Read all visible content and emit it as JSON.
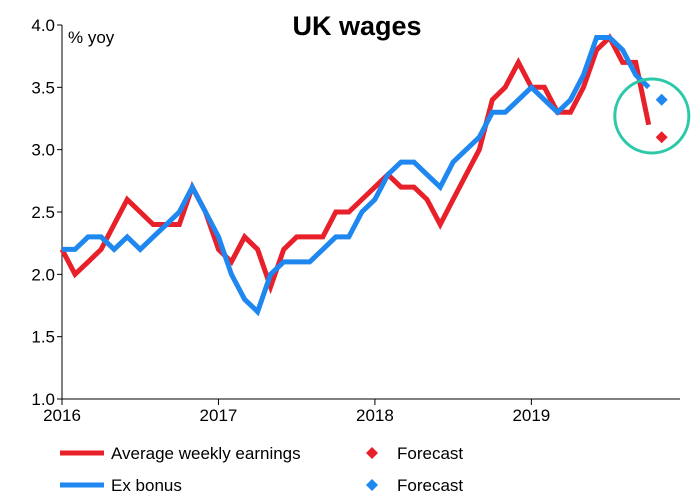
{
  "chart_data": {
    "type": "line",
    "title": "UK wages",
    "ylabel": "% yoy",
    "xlabel": "",
    "xlim": [
      2016.0,
      2019.95
    ],
    "ylim": [
      1.0,
      4.0
    ],
    "yticks": [
      "1.0",
      "1.5",
      "2.0",
      "2.5",
      "3.0",
      "3.5",
      "4.0"
    ],
    "xticks": [
      {
        "label": "2016",
        "x": 2016.0
      },
      {
        "label": "2017",
        "x": 2017.0
      },
      {
        "label": "2018",
        "x": 2018.0
      },
      {
        "label": "2019",
        "x": 2019.0
      }
    ],
    "grid": false,
    "legend_position": "bottom",
    "series": [
      {
        "name": "Average weekly earnings",
        "color": "#e8202a",
        "x": [
          2016.0,
          2016.083,
          2016.167,
          2016.25,
          2016.333,
          2016.417,
          2016.5,
          2016.583,
          2016.667,
          2016.75,
          2016.833,
          2016.917,
          2017.0,
          2017.083,
          2017.167,
          2017.25,
          2017.333,
          2017.417,
          2017.5,
          2017.583,
          2017.667,
          2017.75,
          2017.833,
          2017.917,
          2018.0,
          2018.083,
          2018.167,
          2018.25,
          2018.333,
          2018.417,
          2018.5,
          2018.583,
          2018.667,
          2018.75,
          2018.833,
          2018.917,
          2019.0,
          2019.083,
          2019.167,
          2019.25,
          2019.333,
          2019.417,
          2019.5,
          2019.583,
          2019.667,
          2019.75
        ],
        "values": [
          2.2,
          2.0,
          2.1,
          2.2,
          2.4,
          2.6,
          2.5,
          2.4,
          2.4,
          2.4,
          2.7,
          2.5,
          2.2,
          2.1,
          2.3,
          2.2,
          1.9,
          2.2,
          2.3,
          2.3,
          2.3,
          2.5,
          2.5,
          2.6,
          2.7,
          2.8,
          2.7,
          2.7,
          2.6,
          2.4,
          2.6,
          2.8,
          3.0,
          3.4,
          3.5,
          3.7,
          3.5,
          3.5,
          3.3,
          3.3,
          3.5,
          3.8,
          3.9,
          3.7,
          3.7,
          3.2
        ]
      },
      {
        "name": "Ex bonus",
        "color": "#1f87f0",
        "x": [
          2016.0,
          2016.083,
          2016.167,
          2016.25,
          2016.333,
          2016.417,
          2016.5,
          2016.583,
          2016.667,
          2016.75,
          2016.833,
          2016.917,
          2017.0,
          2017.083,
          2017.167,
          2017.25,
          2017.333,
          2017.417,
          2017.5,
          2017.583,
          2017.667,
          2017.75,
          2017.833,
          2017.917,
          2018.0,
          2018.083,
          2018.167,
          2018.25,
          2018.333,
          2018.417,
          2018.5,
          2018.583,
          2018.667,
          2018.75,
          2018.833,
          2018.917,
          2019.0,
          2019.083,
          2019.167,
          2019.25,
          2019.333,
          2019.417,
          2019.5,
          2019.583,
          2019.667,
          2019.75
        ],
        "values": [
          2.2,
          2.2,
          2.3,
          2.3,
          2.2,
          2.3,
          2.2,
          2.3,
          2.4,
          2.5,
          2.7,
          2.5,
          2.3,
          2.0,
          1.8,
          1.7,
          2.0,
          2.1,
          2.1,
          2.1,
          2.2,
          2.3,
          2.3,
          2.5,
          2.6,
          2.8,
          2.9,
          2.9,
          2.8,
          2.7,
          2.9,
          3.0,
          3.1,
          3.3,
          3.3,
          3.4,
          3.5,
          3.4,
          3.3,
          3.4,
          3.6,
          3.9,
          3.9,
          3.8,
          3.6,
          3.5
        ]
      }
    ],
    "forecasts": [
      {
        "name": "Forecast",
        "color": "#e8202a",
        "x": 2019.833,
        "value": 3.1
      },
      {
        "name": "Forecast",
        "color": "#1f87f0",
        "x": 2019.833,
        "value": 3.4
      }
    ],
    "annotation": {
      "shape": "circle",
      "color": "#2bc9a8",
      "x": 2019.77,
      "y": 3.27
    }
  }
}
